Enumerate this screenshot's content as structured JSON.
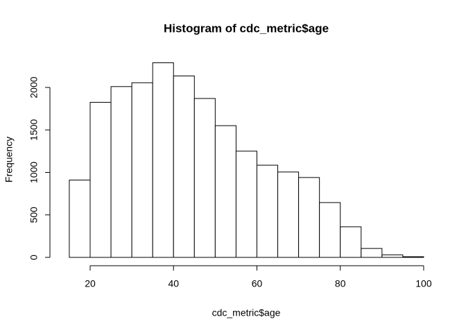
{
  "chart_data": {
    "type": "histogram",
    "title": "Histogram of cdc_metric$age",
    "x_label": "cdc_metric$age",
    "y_label": "Frequency",
    "bins": [
      15,
      20,
      25,
      30,
      35,
      40,
      45,
      50,
      55,
      60,
      65,
      70,
      75,
      80,
      85,
      90,
      95,
      100
    ],
    "values": [
      910,
      1825,
      2010,
      2055,
      2290,
      2135,
      1870,
      1550,
      1250,
      1085,
      1005,
      940,
      645,
      360,
      105,
      30,
      8
    ],
    "color": "#ffffff",
    "xlim": [
      11.6,
      103.4
    ],
    "xticks": [
      20,
      40,
      60,
      80,
      100
    ],
    "ylim": [
      0,
      2290
    ],
    "yticks": [
      0,
      500,
      1000,
      1500,
      2000
    ]
  }
}
